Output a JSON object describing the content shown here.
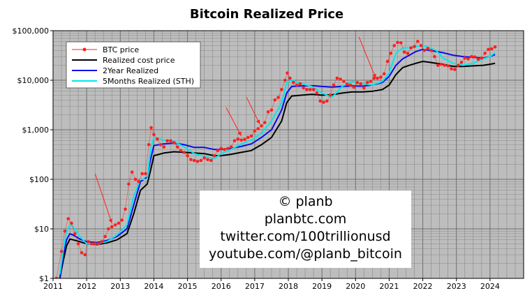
{
  "chart_data": {
    "type": "line",
    "title": "Bitcoin Realized Price",
    "xlabel": "",
    "ylabel": "",
    "y_scale": "log",
    "xlim": [
      2011.0,
      2025.0
    ],
    "ylim": [
      1,
      100000
    ],
    "grid": true,
    "legend_position": "top-left",
    "x_ticks": [
      2011,
      2012,
      2013,
      2014,
      2015,
      2016,
      2017,
      2018,
      2019,
      2020,
      2021,
      2022,
      2023,
      2024
    ],
    "x_tick_labels": [
      "2011",
      "2012",
      "2013",
      "2014",
      "2015",
      "2016",
      "2017",
      "2018",
      "2019",
      "2020",
      "2021",
      "2022",
      "2023",
      "2024"
    ],
    "y_ticks": [
      1,
      10,
      100,
      1000,
      10000,
      100000
    ],
    "y_tick_labels": [
      "$1",
      "$10",
      "$100",
      "$1,000",
      "$10,000",
      "$100,000"
    ],
    "series": [
      {
        "name": "BTC price",
        "style": "dots",
        "color": "#ff2020",
        "x": [
          2011.1,
          2011.25,
          2011.35,
          2011.45,
          2011.55,
          2011.65,
          2011.75,
          2011.85,
          2011.95,
          2012.05,
          2012.15,
          2012.25,
          2012.35,
          2012.45,
          2012.55,
          2012.65,
          2012.75,
          2012.85,
          2012.95,
          2013.05,
          2013.15,
          2013.25,
          2013.35,
          2013.45,
          2013.55,
          2013.65,
          2013.75,
          2013.85,
          2013.92,
          2014.0,
          2014.1,
          2014.2,
          2014.3,
          2014.4,
          2014.5,
          2014.6,
          2014.7,
          2014.8,
          2014.9,
          2015.0,
          2015.1,
          2015.2,
          2015.3,
          2015.4,
          2015.5,
          2015.6,
          2015.7,
          2015.8,
          2015.9,
          2016.0,
          2016.1,
          2016.2,
          2016.3,
          2016.4,
          2016.5,
          2016.6,
          2016.7,
          2016.8,
          2016.9,
          2017.0,
          2017.1,
          2017.2,
          2017.3,
          2017.4,
          2017.5,
          2017.6,
          2017.7,
          2017.8,
          2017.9,
          2017.97,
          2018.05,
          2018.15,
          2018.25,
          2018.35,
          2018.45,
          2018.55,
          2018.65,
          2018.75,
          2018.85,
          2018.95,
          2019.05,
          2019.15,
          2019.25,
          2019.35,
          2019.45,
          2019.55,
          2019.65,
          2019.75,
          2019.85,
          2019.95,
          2020.05,
          2020.15,
          2020.25,
          2020.35,
          2020.45,
          2020.55,
          2020.65,
          2020.75,
          2020.85,
          2020.95,
          2021.05,
          2021.15,
          2021.25,
          2021.35,
          2021.45,
          2021.55,
          2021.65,
          2021.75,
          2021.85,
          2021.95,
          2022.05,
          2022.15,
          2022.25,
          2022.35,
          2022.45,
          2022.55,
          2022.65,
          2022.75,
          2022.85,
          2022.95,
          2023.05,
          2023.15,
          2023.25,
          2023.35,
          2023.45,
          2023.55,
          2023.65,
          2023.75,
          2023.85,
          2023.95,
          2024.05,
          2024.15
        ],
        "y": [
          1,
          3.5,
          9,
          16,
          13,
          8,
          5,
          3.3,
          3,
          5.5,
          5,
          5,
          5,
          5.5,
          7,
          10,
          11,
          12,
          13,
          15,
          25,
          80,
          140,
          100,
          90,
          130,
          130,
          500,
          1100,
          800,
          650,
          500,
          450,
          600,
          600,
          550,
          450,
          380,
          350,
          300,
          250,
          240,
          230,
          240,
          270,
          250,
          240,
          300,
          380,
          420,
          400,
          420,
          450,
          600,
          650,
          620,
          640,
          700,
          750,
          950,
          1050,
          1200,
          1400,
          2300,
          2500,
          4000,
          4500,
          6500,
          10000,
          14000,
          11000,
          9000,
          8000,
          8500,
          7000,
          6500,
          6500,
          6500,
          5500,
          3800,
          3600,
          3800,
          5000,
          8000,
          11000,
          10500,
          9500,
          8300,
          8000,
          7200,
          9000,
          8500,
          7000,
          9000,
          9500,
          11000,
          11000,
          11500,
          13500,
          24000,
          35000,
          50000,
          58000,
          57000,
          37000,
          35000,
          45000,
          48000,
          61000,
          50000,
          40000,
          44000,
          40000,
          30000,
          20000,
          21000,
          20000,
          19500,
          17000,
          16500,
          20000,
          23000,
          28000,
          27000,
          30000,
          29500,
          26500,
          28000,
          35000,
          42000,
          43000,
          47000
        ]
      },
      {
        "name": "Realized cost price",
        "style": "line",
        "color": "#000000",
        "x": [
          2011.2,
          2011.3,
          2011.4,
          2011.5,
          2011.6,
          2011.8,
          2012.0,
          2012.3,
          2012.6,
          2012.9,
          2013.2,
          2013.4,
          2013.6,
          2013.8,
          2013.9,
          2014.0,
          2014.3,
          2014.6,
          2014.9,
          2015.2,
          2015.5,
          2015.8,
          2016.0,
          2016.3,
          2016.6,
          2016.9,
          2017.2,
          2017.5,
          2017.8,
          2017.95,
          2018.1,
          2018.4,
          2018.7,
          2019.0,
          2019.3,
          2019.6,
          2019.9,
          2020.2,
          2020.5,
          2020.8,
          2021.0,
          2021.2,
          2021.4,
          2021.6,
          2021.8,
          2022.0,
          2022.2,
          2022.4,
          2022.6,
          2022.9,
          2023.2,
          2023.5,
          2023.8,
          2024.0,
          2024.15
        ],
        "y": [
          1,
          2.2,
          4.5,
          6.2,
          6,
          5.5,
          5,
          4.8,
          5.2,
          6,
          8,
          20,
          60,
          80,
          150,
          300,
          340,
          360,
          350,
          340,
          330,
          300,
          300,
          320,
          350,
          380,
          500,
          700,
          1500,
          3500,
          4800,
          5000,
          5200,
          5000,
          5100,
          5500,
          5800,
          5800,
          6000,
          6500,
          8000,
          13000,
          18000,
          20000,
          22000,
          24000,
          23000,
          22000,
          21000,
          19000,
          19000,
          19500,
          20000,
          21000,
          22000
        ]
      },
      {
        "name": "2Year Realized",
        "style": "line",
        "color": "#0a0aee",
        "x": [
          2011.2,
          2011.3,
          2011.4,
          2011.5,
          2011.6,
          2011.8,
          2012.0,
          2012.3,
          2012.6,
          2012.9,
          2013.2,
          2013.4,
          2013.6,
          2013.8,
          2013.9,
          2014.0,
          2014.3,
          2014.6,
          2014.9,
          2015.2,
          2015.5,
          2015.8,
          2016.0,
          2016.3,
          2016.6,
          2016.9,
          2017.2,
          2017.5,
          2017.8,
          2017.95,
          2018.1,
          2018.4,
          2018.7,
          2019.0,
          2019.3,
          2019.6,
          2019.9,
          2020.2,
          2020.5,
          2020.8,
          2021.0,
          2021.2,
          2021.4,
          2021.6,
          2021.8,
          2022.0,
          2022.2,
          2022.4,
          2022.6,
          2022.9,
          2023.2,
          2023.5,
          2023.8,
          2024.0,
          2024.15
        ],
        "y": [
          1,
          2.8,
          6,
          8,
          7.5,
          6.2,
          5.5,
          5.3,
          5.8,
          7,
          10,
          30,
          90,
          110,
          250,
          480,
          520,
          540,
          500,
          440,
          440,
          400,
          400,
          420,
          460,
          520,
          700,
          1000,
          2500,
          5500,
          7500,
          7700,
          7800,
          7500,
          7300,
          7500,
          7700,
          7600,
          8000,
          9000,
          12000,
          20000,
          27000,
          32000,
          38000,
          42000,
          40000,
          38000,
          36000,
          32000,
          30000,
          29000,
          28000,
          30000,
          33000
        ]
      },
      {
        "name": "5Months Realized (STH)",
        "style": "line",
        "color": "#00e8ee",
        "x": [
          2011.2,
          2011.3,
          2011.4,
          2011.5,
          2011.6,
          2011.8,
          2012.0,
          2012.3,
          2012.6,
          2012.9,
          2013.2,
          2013.4,
          2013.6,
          2013.8,
          2013.9,
          2014.0,
          2014.3,
          2014.6,
          2014.9,
          2015.2,
          2015.5,
          2015.8,
          2016.0,
          2016.3,
          2016.6,
          2016.9,
          2017.2,
          2017.5,
          2017.8,
          2017.95,
          2018.1,
          2018.4,
          2018.7,
          2019.0,
          2019.3,
          2019.6,
          2019.9,
          2020.2,
          2020.5,
          2020.8,
          2021.0,
          2021.2,
          2021.4,
          2021.6,
          2021.8,
          2022.0,
          2022.2,
          2022.4,
          2022.6,
          2022.9,
          2023.2,
          2023.5,
          2023.8,
          2024.0,
          2024.15
        ],
        "y": [
          1.2,
          3.5,
          9,
          12,
          11,
          7,
          5,
          5,
          5.5,
          7.5,
          12,
          45,
          100,
          100,
          400,
          700,
          620,
          580,
          450,
          330,
          290,
          260,
          330,
          400,
          520,
          620,
          850,
          1500,
          3500,
          9000,
          10000,
          8500,
          7500,
          5500,
          4500,
          7500,
          9500,
          8500,
          8000,
          9500,
          14000,
          35000,
          45000,
          45000,
          48000,
          50000,
          45000,
          40000,
          28000,
          22000,
          20000,
          22000,
          27000,
          30000,
          36000
        ]
      }
    ],
    "annotations": [
      {
        "type": "arrow",
        "color": "red",
        "x_start": 2012.25,
        "y_start": 130,
        "x_end": 2012.75,
        "y_end": 13
      },
      {
        "type": "arrow",
        "color": "red",
        "x_start": 2016.15,
        "y_start": 2800,
        "x_end": 2016.6,
        "y_end": 750
      },
      {
        "type": "arrow",
        "color": "red",
        "x_start": 2016.75,
        "y_start": 4600,
        "x_end": 2017.15,
        "y_end": 1300
      },
      {
        "type": "arrow",
        "color": "red",
        "x_start": 2020.1,
        "y_start": 75000,
        "x_end": 2020.6,
        "y_end": 11000
      }
    ],
    "watermark": [
      "© planb",
      "planbtc.com",
      "twitter.com/100trillionusd",
      "youtube.com/@planb_bitcoin"
    ]
  },
  "colors": {
    "plot_background": "#bdbdbd",
    "grid_major": "#6e6e6e",
    "grid_minor": "#8a8a8a",
    "arrow": "#ff2020"
  }
}
